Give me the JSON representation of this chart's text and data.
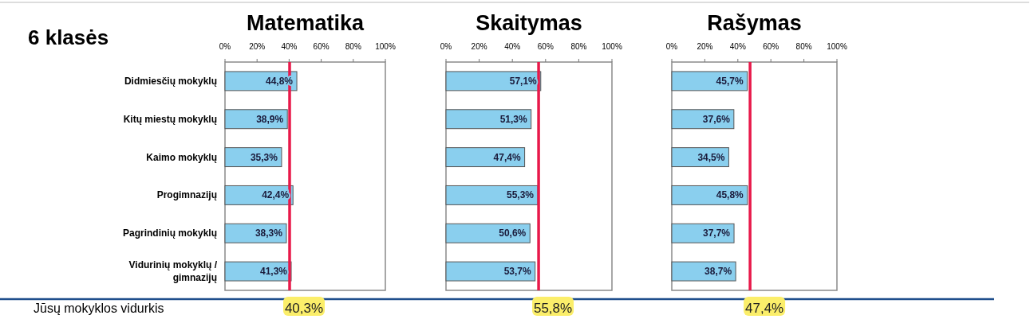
{
  "chart_data": [
    {
      "type": "bar",
      "orientation": "horizontal",
      "title": "Matematika",
      "categories": [
        "Didmiesčių mokyklų",
        "Kitų miestų mokyklų",
        "Kaimo mokyklų",
        "Progimnazijų",
        "Pagrindinių mokyklų",
        "Vidurinių mokyklų / gimnazijų"
      ],
      "values": [
        44.8,
        38.9,
        35.3,
        42.4,
        38.3,
        41.3
      ],
      "value_labels": [
        "44,8%",
        "38,9%",
        "35,3%",
        "42,4%",
        "38,3%",
        "41,3%"
      ],
      "color": "#8acfee",
      "xlim": [
        0,
        100
      ],
      "xticks": [
        {
          "value": 0,
          "label": "0%"
        },
        {
          "value": 20,
          "label": "20%"
        },
        {
          "value": 40,
          "label": "40%"
        },
        {
          "value": 60,
          "label": "60%"
        },
        {
          "value": 80,
          "label": "80%"
        },
        {
          "value": 100,
          "label": "100%"
        }
      ],
      "ref_lines": [
        {
          "axis": "x",
          "value": 40.3,
          "label": "40,3%",
          "color": "#e8194a"
        }
      ],
      "annotations": [
        "6 klasės",
        "Jūsų mokyklos vidurkis"
      ]
    },
    {
      "type": "bar",
      "orientation": "horizontal",
      "title": "Skaitymas",
      "categories": [
        null,
        null,
        null,
        null,
        null,
        null
      ],
      "values": [
        57.1,
        51.3,
        47.4,
        55.3,
        50.6,
        53.7
      ],
      "value_labels": [
        "57,1%",
        "51,3%",
        "47,4%",
        "55,3%",
        "50,6%",
        "53,7%"
      ],
      "color": "#8acfee",
      "xlim": [
        0,
        100
      ],
      "xticks": [
        {
          "value": 0,
          "label": "0%"
        },
        {
          "value": 20,
          "label": "20%"
        },
        {
          "value": 40,
          "label": "40%"
        },
        {
          "value": 60,
          "label": "60%"
        },
        {
          "value": 80,
          "label": "80%"
        },
        {
          "value": 100,
          "label": "100%"
        }
      ],
      "ref_lines": [
        {
          "axis": "x",
          "value": 55.8,
          "label": "55,8%",
          "color": "#e8194a"
        }
      ]
    },
    {
      "type": "bar",
      "orientation": "horizontal",
      "title": "Rašymas",
      "categories": [
        null,
        null,
        null,
        null,
        null,
        null
      ],
      "values": [
        45.7,
        37.6,
        34.5,
        45.8,
        37.7,
        38.7
      ],
      "value_labels": [
        "45,7%",
        "37,6%",
        "34,5%",
        "45,8%",
        "37,7%",
        "38,7%"
      ],
      "color": "#8acfee",
      "xlim": [
        0,
        100
      ],
      "xticks": [
        {
          "value": 0,
          "label": "0%"
        },
        {
          "value": 20,
          "label": "20%"
        },
        {
          "value": 40,
          "label": "40%"
        },
        {
          "value": 60,
          "label": "60%"
        },
        {
          "value": 80,
          "label": "80%"
        },
        {
          "value": 100,
          "label": "100%"
        }
      ],
      "ref_lines": [
        {
          "axis": "x",
          "value": 47.4,
          "label": "47,4%",
          "color": "#e8194a"
        }
      ]
    }
  ]
}
